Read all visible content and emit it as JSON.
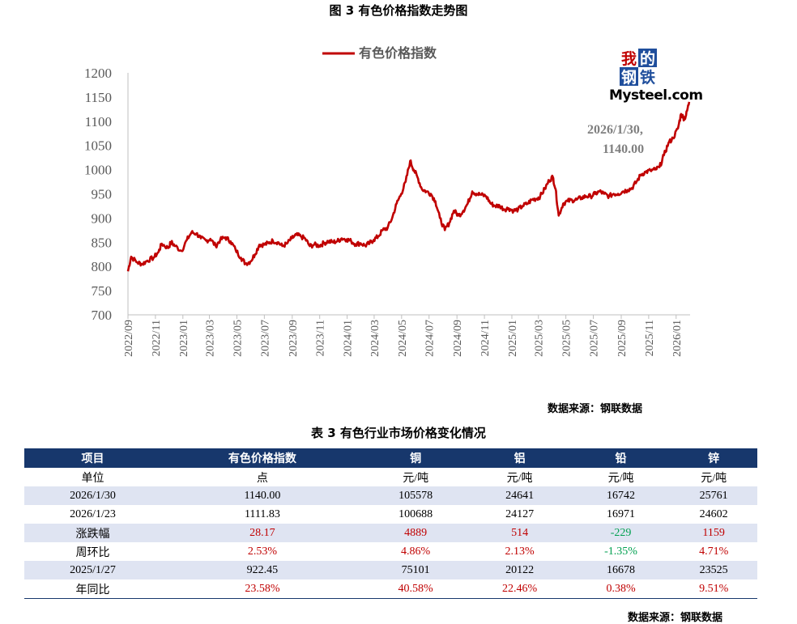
{
  "figure_title": "图 3  有色价格指数走势图",
  "chart_source": "数据来源：钢联数据",
  "logo": {
    "line1a": "我",
    "line1b": "的",
    "line2a": "钢",
    "line2b": "铁",
    "brand": "Mysteel.com"
  },
  "chart_data": {
    "type": "line",
    "title": "",
    "legend": [
      "有色价格指数"
    ],
    "legend_position": "top",
    "ylim": [
      700,
      1200
    ],
    "yticks": [
      700,
      750,
      800,
      850,
      900,
      950,
      1000,
      1050,
      1100,
      1150,
      1200
    ],
    "xticks": [
      "2022/09",
      "2022/11",
      "2023/01",
      "2023/03",
      "2023/05",
      "2023/07",
      "2023/09",
      "2023/11",
      "2024/01",
      "2024/03",
      "2024/05",
      "2024/07",
      "2024/09",
      "2024/11",
      "2025/01",
      "2025/03",
      "2025/05",
      "2025/07",
      "2025/09",
      "2025/11",
      "2026/01"
    ],
    "xlim": [
      "2022/09/01",
      "2026/02/01"
    ],
    "grid": false,
    "color": "#c00000",
    "series": [
      {
        "name": "有色价格指数",
        "points": [
          [
            "2022/09/01",
            790
          ],
          [
            "2022/09/08",
            820
          ],
          [
            "2022/09/22",
            808
          ],
          [
            "2022/10/03",
            805
          ],
          [
            "2022/10/14",
            812
          ],
          [
            "2022/10/28",
            818
          ],
          [
            "2022/11/08",
            830
          ],
          [
            "2022/11/15",
            847
          ],
          [
            "2022/11/29",
            838
          ],
          [
            "2022/12/06",
            850
          ],
          [
            "2022/12/15",
            842
          ],
          [
            "2022/12/29",
            832
          ],
          [
            "2023/01/10",
            855
          ],
          [
            "2023/01/20",
            870
          ],
          [
            "2023/01/31",
            868
          ],
          [
            "2023/02/10",
            858
          ],
          [
            "2023/02/22",
            853
          ],
          [
            "2023/03/03",
            857
          ],
          [
            "2023/03/15",
            842
          ],
          [
            "2023/03/25",
            855
          ],
          [
            "2023/04/05",
            860
          ],
          [
            "2023/04/17",
            852
          ],
          [
            "2023/04/28",
            835
          ],
          [
            "2023/05/10",
            818
          ],
          [
            "2023/05/20",
            806
          ],
          [
            "2023/05/31",
            810
          ],
          [
            "2023/06/10",
            825
          ],
          [
            "2023/06/20",
            845
          ],
          [
            "2023/06/30",
            845
          ],
          [
            "2023/07/10",
            848
          ],
          [
            "2023/07/20",
            853
          ],
          [
            "2023/07/31",
            850
          ],
          [
            "2023/08/10",
            842
          ],
          [
            "2023/08/20",
            847
          ],
          [
            "2023/08/31",
            858
          ],
          [
            "2023/09/10",
            865
          ],
          [
            "2023/09/20",
            862
          ],
          [
            "2023/09/30",
            857
          ],
          [
            "2023/10/10",
            842
          ],
          [
            "2023/10/20",
            845
          ],
          [
            "2023/10/31",
            843
          ],
          [
            "2023/11/10",
            848
          ],
          [
            "2023/11/20",
            852
          ],
          [
            "2023/11/30",
            850
          ],
          [
            "2023/12/10",
            852
          ],
          [
            "2023/12/20",
            858
          ],
          [
            "2023/12/31",
            856
          ],
          [
            "2024/01/10",
            852
          ],
          [
            "2024/01/20",
            846
          ],
          [
            "2024/01/31",
            848
          ],
          [
            "2024/02/10",
            843
          ],
          [
            "2024/02/20",
            848
          ],
          [
            "2024/02/29",
            855
          ],
          [
            "2024/03/10",
            862
          ],
          [
            "2024/03/20",
            875
          ],
          [
            "2024/03/31",
            880
          ],
          [
            "2024/04/10",
            900
          ],
          [
            "2024/04/20",
            930
          ],
          [
            "2024/04/30",
            950
          ],
          [
            "2024/05/10",
            975
          ],
          [
            "2024/05/20",
            1018
          ],
          [
            "2024/05/28",
            1000
          ],
          [
            "2024/06/05",
            985
          ],
          [
            "2024/06/15",
            960
          ],
          [
            "2024/06/25",
            955
          ],
          [
            "2024/07/05",
            950
          ],
          [
            "2024/07/15",
            935
          ],
          [
            "2024/07/25",
            900
          ],
          [
            "2024/08/05",
            875
          ],
          [
            "2024/08/15",
            890
          ],
          [
            "2024/08/25",
            915
          ],
          [
            "2024/09/05",
            905
          ],
          [
            "2024/09/15",
            915
          ],
          [
            "2024/09/25",
            930
          ],
          [
            "2024/10/05",
            955
          ],
          [
            "2024/10/15",
            950
          ],
          [
            "2024/10/25",
            948
          ],
          [
            "2024/11/05",
            945
          ],
          [
            "2024/11/15",
            930
          ],
          [
            "2024/11/25",
            925
          ],
          [
            "2024/12/05",
            925
          ],
          [
            "2024/12/15",
            918
          ],
          [
            "2024/12/25",
            920
          ],
          [
            "2025/01/05",
            915
          ],
          [
            "2025/01/15",
            918
          ],
          [
            "2025/01/25",
            925
          ],
          [
            "2025/02/05",
            930
          ],
          [
            "2025/02/15",
            938
          ],
          [
            "2025/02/25",
            940
          ],
          [
            "2025/03/05",
            945
          ],
          [
            "2025/03/15",
            960
          ],
          [
            "2025/03/25",
            978
          ],
          [
            "2025/04/02",
            985
          ],
          [
            "2025/04/08",
            960
          ],
          [
            "2025/04/15",
            905
          ],
          [
            "2025/04/25",
            930
          ],
          [
            "2025/05/05",
            935
          ],
          [
            "2025/05/15",
            937
          ],
          [
            "2025/05/25",
            938
          ],
          [
            "2025/06/05",
            942
          ],
          [
            "2025/06/15",
            945
          ],
          [
            "2025/06/25",
            945
          ],
          [
            "2025/07/05",
            950
          ],
          [
            "2025/07/15",
            955
          ],
          [
            "2025/07/25",
            950
          ],
          [
            "2025/08/05",
            945
          ],
          [
            "2025/08/15",
            950
          ],
          [
            "2025/08/25",
            950
          ],
          [
            "2025/09/05",
            955
          ],
          [
            "2025/09/15",
            958
          ],
          [
            "2025/09/25",
            962
          ],
          [
            "2025/10/05",
            975
          ],
          [
            "2025/10/15",
            990
          ],
          [
            "2025/10/25",
            995
          ],
          [
            "2025/11/05",
            998
          ],
          [
            "2025/11/15",
            1000
          ],
          [
            "2025/11/25",
            1005
          ],
          [
            "2025/12/05",
            1030
          ],
          [
            "2025/12/15",
            1055
          ],
          [
            "2025/12/25",
            1065
          ],
          [
            "2026/01/05",
            1085
          ],
          [
            "2026/01/12",
            1115
          ],
          [
            "2026/01/19",
            1105
          ],
          [
            "2026/01/23",
            1111.83
          ],
          [
            "2026/01/30",
            1140.0
          ]
        ]
      }
    ],
    "annotation": {
      "date": "2026/1/30,",
      "value": "1140.00"
    }
  },
  "table": {
    "title": "表 3 有色行业市场价格变化情况",
    "headers": [
      "项目",
      "有色价格指数",
      "铜",
      "铝",
      "铅",
      "锌"
    ],
    "rows": [
      {
        "cells": [
          "单位",
          "点",
          "元/吨",
          "元/吨",
          "元/吨",
          "元/吨"
        ],
        "colors": [
          "",
          "",
          "",
          "",
          "",
          ""
        ]
      },
      {
        "cells": [
          "2026/1/30",
          "1140.00",
          "105578",
          "24641",
          "16742",
          "25761"
        ],
        "colors": [
          "",
          "",
          "",
          "",
          "",
          ""
        ]
      },
      {
        "cells": [
          "2026/1/23",
          "1111.83",
          "100688",
          "24127",
          "16971",
          "24602"
        ],
        "colors": [
          "",
          "",
          "",
          "",
          "",
          ""
        ]
      },
      {
        "cells": [
          "涨跌幅",
          "28.17",
          "4889",
          "514",
          "-229",
          "1159"
        ],
        "colors": [
          "",
          "red",
          "red",
          "red",
          "green",
          "red"
        ]
      },
      {
        "cells": [
          "周环比",
          "2.53%",
          "4.86%",
          "2.13%",
          "-1.35%",
          "4.71%"
        ],
        "colors": [
          "",
          "red",
          "red",
          "red",
          "green",
          "red"
        ]
      },
      {
        "cells": [
          "2025/1/27",
          "922.45",
          "75101",
          "20122",
          "16678",
          "23525"
        ],
        "colors": [
          "",
          "",
          "",
          "",
          "",
          ""
        ]
      },
      {
        "cells": [
          "年同比",
          "23.58%",
          "40.58%",
          "22.46%",
          "0.38%",
          "9.51%"
        ],
        "colors": [
          "",
          "red",
          "red",
          "red",
          "red",
          "red"
        ]
      }
    ]
  },
  "table_source": "数据来源：钢联数据"
}
